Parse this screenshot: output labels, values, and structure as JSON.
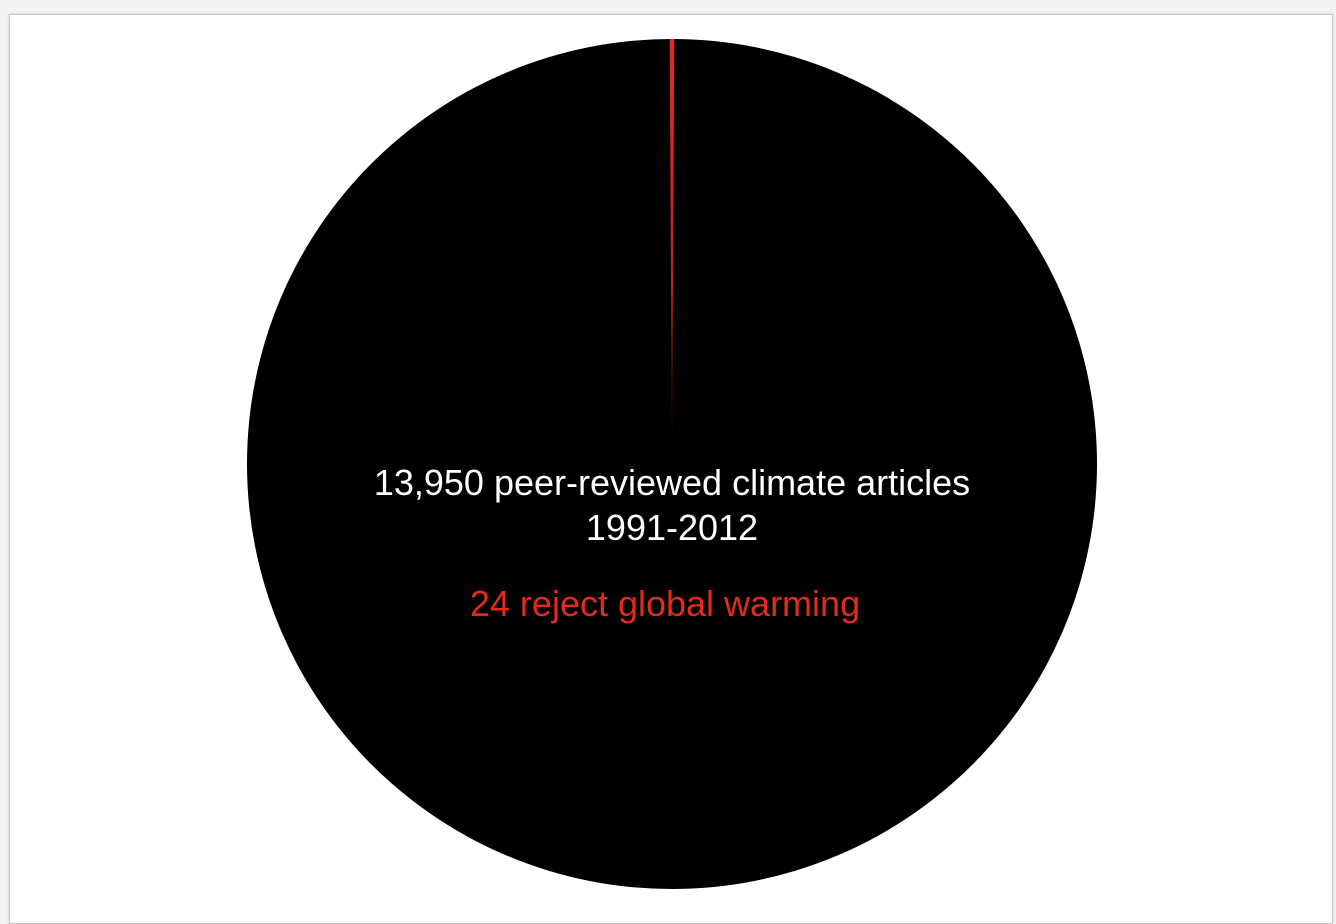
{
  "chart_data": {
    "type": "pie",
    "slices": [
      {
        "label": "13,950 peer-reviewed climate articles 1991-2012",
        "value": 13926,
        "color": "#000000"
      },
      {
        "label": "24 reject global warming",
        "value": 24,
        "color": "#e22b1b"
      }
    ],
    "total": 13950,
    "center_text": {
      "line1": "13,950 peer-reviewed climate articles",
      "line2": "1991-2012",
      "line3": "24 reject global warming"
    },
    "colors": {
      "main": "#000000",
      "reject": "#e22b1b",
      "text_main": "#ffffff",
      "text_reject": "#e22b1b"
    }
  }
}
